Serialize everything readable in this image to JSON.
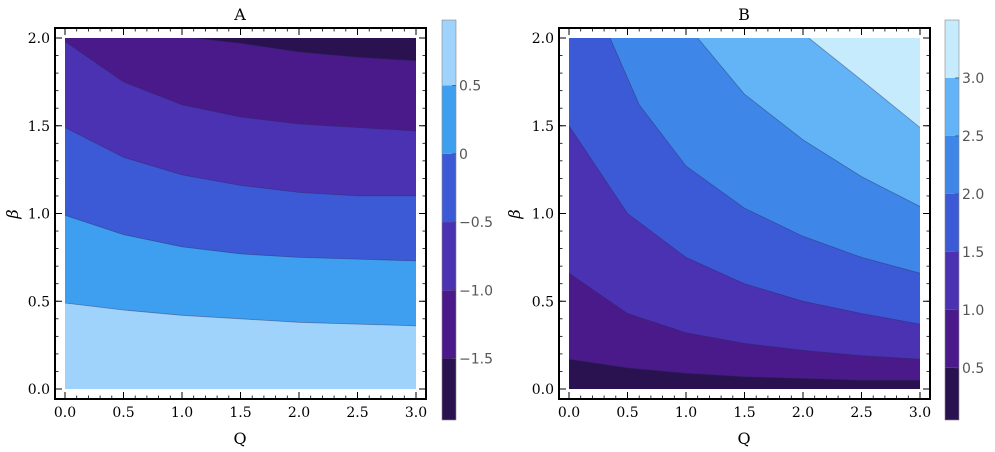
{
  "chart_data": [
    {
      "type": "contour",
      "title": "A",
      "xlabel": "Q",
      "ylabel": "β",
      "xlim": [
        0,
        3.0
      ],
      "ylim": [
        0,
        2.0
      ],
      "x_ticks": [
        "0.0",
        "0.5",
        "1.0",
        "1.5",
        "2.0",
        "2.5",
        "3.0"
      ],
      "y_ticks": [
        "0.0",
        "0.5",
        "1.0",
        "1.5",
        "2.0"
      ],
      "colorbar": {
        "range": [
          -1.95,
          0.98
        ],
        "ticks": [
          "0.5",
          "0",
          "−0.5",
          "−1.0",
          "−1.5"
        ],
        "bands": [
          {
            "from": -1.95,
            "to": -1.5,
            "color": "#2a1250"
          },
          {
            "from": -1.5,
            "to": -1.0,
            "color": "#4a1a8a"
          },
          {
            "from": -1.0,
            "to": -0.5,
            "color": "#4a32b2"
          },
          {
            "from": -0.5,
            "to": 0.0,
            "color": "#3d5ad6"
          },
          {
            "from": 0.0,
            "to": 0.5,
            "color": "#3e9ff0"
          },
          {
            "from": 0.5,
            "to": 0.98,
            "color": "#9fd3fb"
          }
        ]
      },
      "contour_lines": [
        {
          "level": 0.5,
          "points": [
            [
              0,
              0.49
            ],
            [
              0.5,
              0.45
            ],
            [
              1.0,
              0.42
            ],
            [
              1.5,
              0.4
            ],
            [
              2.0,
              0.38
            ],
            [
              2.5,
              0.37
            ],
            [
              3.0,
              0.36
            ]
          ]
        },
        {
          "level": 0.0,
          "points": [
            [
              0,
              0.99
            ],
            [
              0.5,
              0.88
            ],
            [
              1.0,
              0.81
            ],
            [
              1.5,
              0.77
            ],
            [
              2.0,
              0.75
            ],
            [
              2.5,
              0.74
            ],
            [
              3.0,
              0.73
            ]
          ]
        },
        {
          "level": -0.5,
          "points": [
            [
              0,
              1.49
            ],
            [
              0.5,
              1.32
            ],
            [
              1.0,
              1.22
            ],
            [
              1.5,
              1.16
            ],
            [
              2.0,
              1.12
            ],
            [
              2.5,
              1.1
            ],
            [
              3.0,
              1.1
            ]
          ]
        },
        {
          "level": -1.0,
          "points": [
            [
              0,
              1.98
            ],
            [
              0.5,
              1.75
            ],
            [
              1.0,
              1.62
            ],
            [
              1.5,
              1.55
            ],
            [
              2.0,
              1.51
            ],
            [
              2.5,
              1.49
            ],
            [
              3.0,
              1.47
            ]
          ]
        },
        {
          "level": -1.5,
          "points": [
            [
              1.1,
              2.0
            ],
            [
              1.5,
              1.97
            ],
            [
              2.0,
              1.92
            ],
            [
              2.5,
              1.89
            ],
            [
              3.0,
              1.87
            ]
          ]
        }
      ]
    },
    {
      "type": "contour",
      "title": "B",
      "xlabel": "Q",
      "ylabel": "β",
      "xlim": [
        0,
        3.0
      ],
      "ylim": [
        0,
        2.0
      ],
      "x_ticks": [
        "0.0",
        "0.5",
        "1.0",
        "1.5",
        "2.0",
        "2.5",
        "3.0"
      ],
      "y_ticks": [
        "0.0",
        "0.5",
        "1.0",
        "1.5",
        "2.0"
      ],
      "colorbar": {
        "range": [
          0.05,
          3.5
        ],
        "ticks": [
          "0.5",
          "1.0",
          "1.5",
          "2.0",
          "2.5",
          "3.0"
        ],
        "bands": [
          {
            "from": 0.05,
            "to": 0.5,
            "color": "#2a1250"
          },
          {
            "from": 0.5,
            "to": 1.0,
            "color": "#4a1a8a"
          },
          {
            "from": 1.0,
            "to": 1.5,
            "color": "#4a32b2"
          },
          {
            "from": 1.5,
            "to": 2.0,
            "color": "#3d5ad6"
          },
          {
            "from": 2.0,
            "to": 2.5,
            "color": "#3e86e8"
          },
          {
            "from": 2.5,
            "to": 3.0,
            "color": "#62b4f7"
          },
          {
            "from": 3.0,
            "to": 3.5,
            "color": "#c6ebfc"
          }
        ]
      },
      "contour_lines": [
        {
          "level": 0.5,
          "points": [
            [
              0,
              0.17
            ],
            [
              0.5,
              0.12
            ],
            [
              1.0,
              0.09
            ],
            [
              1.5,
              0.07
            ],
            [
              2.0,
              0.06
            ],
            [
              2.5,
              0.05
            ],
            [
              3.0,
              0.05
            ]
          ]
        },
        {
          "level": 1.0,
          "points": [
            [
              0,
              0.66
            ],
            [
              0.5,
              0.43
            ],
            [
              1.0,
              0.32
            ],
            [
              1.5,
              0.26
            ],
            [
              2.0,
              0.22
            ],
            [
              2.5,
              0.19
            ],
            [
              3.0,
              0.17
            ]
          ]
        },
        {
          "level": 1.5,
          "points": [
            [
              0,
              1.5
            ],
            [
              0.5,
              1.0
            ],
            [
              1.0,
              0.75
            ],
            [
              1.5,
              0.6
            ],
            [
              2.0,
              0.5
            ],
            [
              2.5,
              0.43
            ],
            [
              3.0,
              0.37
            ]
          ]
        },
        {
          "level": 2.0,
          "points": [
            [
              0.35,
              2.0
            ],
            [
              0.6,
              1.62
            ],
            [
              1.0,
              1.27
            ],
            [
              1.5,
              1.03
            ],
            [
              2.0,
              0.87
            ],
            [
              2.5,
              0.75
            ],
            [
              3.0,
              0.66
            ]
          ]
        },
        {
          "level": 2.5,
          "points": [
            [
              1.1,
              2.0
            ],
            [
              1.5,
              1.68
            ],
            [
              2.0,
              1.42
            ],
            [
              2.5,
              1.21
            ],
            [
              3.0,
              1.04
            ]
          ]
        },
        {
          "level": 3.0,
          "points": [
            [
              2.05,
              2.0
            ],
            [
              2.5,
              1.76
            ],
            [
              3.0,
              1.49
            ]
          ]
        }
      ]
    }
  ]
}
